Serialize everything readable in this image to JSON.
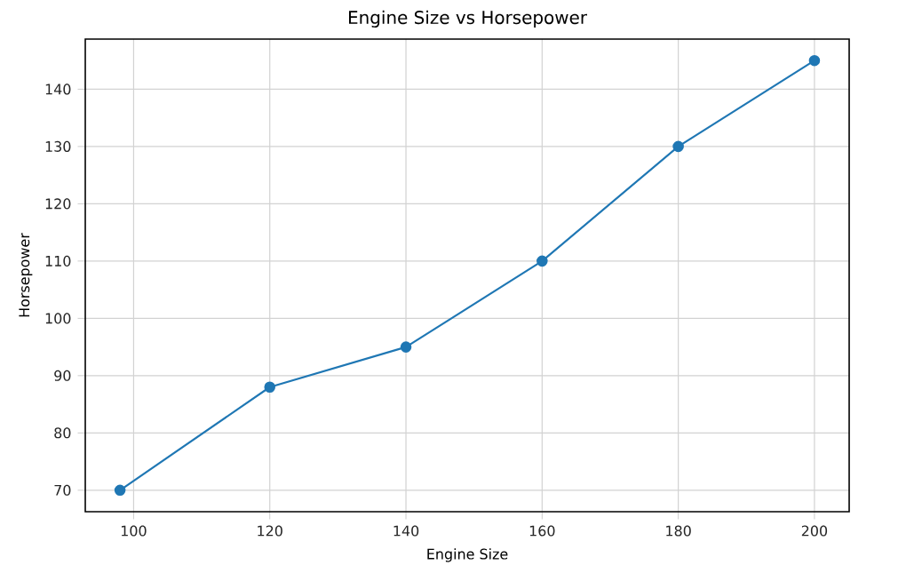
{
  "chart_data": {
    "type": "line",
    "title": "Engine Size vs Horsepower",
    "xlabel": "Engine Size",
    "ylabel": "Horsepower",
    "x": [
      98,
      120,
      140,
      160,
      180,
      200
    ],
    "series": [
      {
        "color": "#1f77b4",
        "values": [
          70,
          88,
          95,
          110,
          130,
          145
        ]
      }
    ],
    "xlim": [
      92.9,
      205.1
    ],
    "ylim": [
      66.25,
      148.75
    ],
    "xticks": [
      100,
      120,
      140,
      160,
      180,
      200
    ],
    "yticks": [
      70,
      80,
      90,
      100,
      110,
      120,
      130,
      140
    ],
    "grid": true,
    "marker": "circle",
    "line_style": "solid"
  }
}
